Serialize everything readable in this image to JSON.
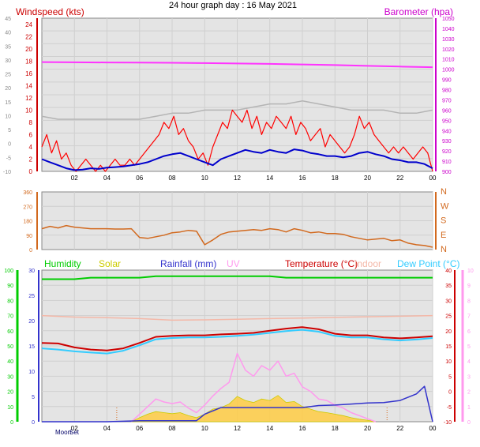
{
  "title": "24 hour graph day : 16 May 2021",
  "colors": {
    "wind_speed": "#ff0000",
    "wind_avg": "#0000cc",
    "wind_gust": "#b4b4b4",
    "barometer": "#ff33ff",
    "direction": "#d2691e",
    "humidity": "#00cc00",
    "solar": "#cccc00",
    "solar_fill": "#ffcc44",
    "rainfall": "#3333cc",
    "uv": "#ff99ee",
    "temperature": "#cc0000",
    "indoor": "#f4b8a8",
    "dew_point": "#33ccff",
    "moon": "#000066",
    "axis_left": "#cc0000",
    "axis_right": "#cc00cc",
    "plot_bg": "#e4e4e4"
  },
  "x_ticks": [
    "02",
    "04",
    "06",
    "08",
    "10",
    "12",
    "14",
    "16",
    "18",
    "20",
    "22",
    "00"
  ],
  "chart_data": [
    {
      "type": "line",
      "name": "wind",
      "left_axis_label": "Windspeed (kts)",
      "right_axis_label": "Barometer (hpa)",
      "y_left_ticks": [
        "24",
        "22",
        "20",
        "18",
        "16",
        "14",
        "12",
        "10",
        "8",
        "6",
        "4",
        "2",
        "0"
      ],
      "y_left_range": [
        0,
        25
      ],
      "y_far_left_ticks": [
        "45",
        "40",
        "35",
        "30",
        "25",
        "20",
        "15",
        "10",
        "5",
        "0",
        "-5",
        "-10"
      ],
      "y_right_ticks": [
        "1050",
        "1040",
        "1030",
        "1020",
        "1010",
        "1000",
        "990",
        "980",
        "970",
        "960",
        "950",
        "940",
        "930",
        "920",
        "910",
        "900"
      ],
      "y_right_range": [
        900,
        1050
      ],
      "series": [
        {
          "role": "speed",
          "x": [
            0,
            0.3,
            0.6,
            0.9,
            1.2,
            1.5,
            1.8,
            2.1,
            2.4,
            2.7,
            3,
            3.3,
            3.6,
            3.9,
            4.2,
            4.5,
            4.8,
            5.1,
            5.4,
            5.7,
            6,
            6.3,
            6.6,
            6.9,
            7.2,
            7.5,
            7.8,
            8.1,
            8.4,
            8.7,
            9,
            9.3,
            9.6,
            9.9,
            10.2,
            10.5,
            10.8,
            11.1,
            11.4,
            11.7,
            12,
            12.3,
            12.6,
            12.9,
            13.2,
            13.5,
            13.8,
            14.1,
            14.4,
            14.7,
            15,
            15.3,
            15.6,
            15.9,
            16.2,
            16.5,
            16.8,
            17.1,
            17.4,
            17.7,
            18,
            18.3,
            18.6,
            18.9,
            19.2,
            19.5,
            19.8,
            20.1,
            20.4,
            20.7,
            21,
            21.3,
            21.6,
            21.9,
            22.2,
            22.5,
            22.8,
            23.1,
            23.4,
            23.7,
            24
          ],
          "y": [
            4,
            6,
            3,
            5,
            2,
            3,
            1,
            0,
            1,
            2,
            1,
            0,
            1,
            0,
            1,
            2,
            1,
            1,
            2,
            1,
            2,
            3,
            4,
            5,
            6,
            8,
            7,
            9,
            6,
            7,
            5,
            4,
            2,
            3,
            1,
            4,
            6,
            8,
            7,
            10,
            9,
            8,
            10,
            7,
            9,
            6,
            8,
            7,
            9,
            8,
            7,
            9,
            6,
            8,
            7,
            5,
            6,
            7,
            4,
            6,
            5,
            4,
            3,
            4,
            6,
            9,
            7,
            8,
            6,
            5,
            4,
            3,
            4,
            3,
            4,
            3,
            2,
            3,
            4,
            3,
            0
          ]
        },
        {
          "role": "average",
          "x": [
            0,
            0.5,
            1,
            1.5,
            2,
            2.5,
            3,
            3.5,
            4,
            4.5,
            5,
            5.5,
            6,
            6.5,
            7,
            7.5,
            8,
            8.5,
            9,
            9.5,
            10,
            10.5,
            11,
            11.5,
            12,
            12.5,
            13,
            13.5,
            14,
            14.5,
            15,
            15.5,
            16,
            16.5,
            17,
            17.5,
            18,
            18.5,
            19,
            19.5,
            20,
            20.5,
            21,
            21.5,
            22,
            22.5,
            23,
            23.5,
            24
          ],
          "y": [
            2,
            1.5,
            1,
            0.5,
            0.2,
            0.3,
            0.5,
            0.4,
            0.6,
            0.7,
            0.8,
            1,
            1.2,
            1.5,
            2,
            2.5,
            2.8,
            3,
            2.5,
            2,
            1.5,
            1,
            2,
            2.5,
            3,
            3.5,
            3.2,
            3,
            3.5,
            3.2,
            3,
            3.6,
            3.4,
            3,
            2.8,
            2.5,
            2.5,
            2.3,
            2.5,
            3,
            3.2,
            2.8,
            2.5,
            2,
            1.8,
            1.5,
            1.5,
            1.2,
            0.5
          ]
        },
        {
          "role": "gust",
          "x": [
            0,
            1,
            2,
            3,
            4,
            5,
            6,
            7,
            8,
            9,
            10,
            11,
            12,
            13,
            14,
            15,
            16,
            17,
            18,
            19,
            20,
            21,
            22,
            23,
            24
          ],
          "y": [
            9,
            8.5,
            8.5,
            8.5,
            8.5,
            8.5,
            8.5,
            9,
            9.5,
            9.5,
            10,
            10,
            10,
            10.5,
            11,
            11,
            11.5,
            11,
            10.5,
            10,
            10,
            10,
            9.5,
            9.5,
            10
          ]
        },
        {
          "role": "barometer",
          "axis": "right",
          "x": [
            0,
            2,
            4,
            6,
            8,
            10,
            12,
            14,
            16,
            18,
            20,
            22,
            24
          ],
          "y": [
            1007,
            1006.8,
            1006.6,
            1006.5,
            1006.3,
            1006,
            1005.6,
            1005.2,
            1004.7,
            1004.1,
            1003.3,
            1002.6,
            1002
          ]
        }
      ]
    },
    {
      "type": "line",
      "name": "direction",
      "y_left_ticks": [
        "360",
        "270",
        "180",
        "90",
        "0"
      ],
      "y_range": [
        0,
        360
      ],
      "y_right_ticks": [
        "N",
        "W",
        "S",
        "E",
        "N"
      ],
      "series": [
        {
          "role": "direction",
          "x": [
            0,
            0.5,
            1,
            1.5,
            2,
            2.5,
            3,
            3.5,
            4,
            4.5,
            5,
            5.5,
            6,
            6.5,
            7,
            7.5,
            8,
            8.5,
            9,
            9.5,
            10,
            10.5,
            11,
            11.5,
            12,
            12.5,
            13,
            13.5,
            14,
            14.5,
            15,
            15.5,
            16,
            16.5,
            17,
            17.5,
            18,
            18.5,
            19,
            19.5,
            20,
            20.5,
            21,
            21.5,
            22,
            22.5,
            23,
            23.5,
            24
          ],
          "y": [
            130,
            145,
            135,
            150,
            140,
            135,
            130,
            130,
            130,
            128,
            128,
            130,
            75,
            70,
            80,
            90,
            105,
            110,
            120,
            115,
            30,
            60,
            95,
            110,
            115,
            120,
            125,
            120,
            130,
            125,
            110,
            130,
            120,
            105,
            110,
            100,
            100,
            95,
            80,
            70,
            60,
            65,
            70,
            55,
            60,
            40,
            30,
            25,
            15
          ]
        }
      ]
    },
    {
      "type": "line",
      "name": "climate",
      "legend": [
        "Humidity",
        "Solar",
        "Rainfall (mm)",
        "UV",
        "Temperature (°C)",
        "Indoor",
        "Dew Point (°C)"
      ],
      "y_far_left_ticks": [
        "100",
        "90",
        "80",
        "70",
        "60",
        "50",
        "40",
        "30",
        "20",
        "10",
        "0"
      ],
      "y_left_ticks": [
        "30",
        "25",
        "20",
        "15",
        "10",
        "5",
        "0"
      ],
      "y_left_range": [
        0,
        30
      ],
      "y_right_ticks": [
        "40",
        "35",
        "30",
        "25",
        "20",
        "15",
        "10",
        "5",
        "0",
        "-5",
        "-10"
      ],
      "y_right_range": [
        -10,
        40
      ],
      "y_uv_ticks": [
        "10",
        "9",
        "8",
        "7",
        "6",
        "5",
        "4",
        "3",
        "2",
        "1",
        "0"
      ],
      "moon_labels": [
        "Moon",
        "Set"
      ],
      "series": [
        {
          "role": "humidity",
          "axis": "far_left",
          "x": [
            0,
            1,
            2,
            3,
            4,
            5,
            6,
            7,
            8,
            9,
            10,
            11,
            12,
            13,
            14,
            15,
            16,
            17,
            18,
            19,
            20,
            21,
            22,
            23,
            24
          ],
          "y": [
            94,
            94,
            94,
            95,
            95,
            95,
            95,
            96,
            96,
            96,
            96,
            96,
            96,
            96,
            96,
            95,
            95,
            95,
            95,
            95,
            95,
            95,
            95,
            95,
            95
          ]
        },
        {
          "role": "temperature",
          "axis": "right",
          "x": [
            0,
            1,
            2,
            3,
            4,
            5,
            6,
            7,
            8,
            9,
            10,
            11,
            12,
            13,
            14,
            15,
            16,
            17,
            18,
            19,
            20,
            21,
            22,
            23,
            24
          ],
          "y": [
            16,
            15.8,
            14.5,
            13.8,
            13.5,
            14.2,
            16,
            18,
            18.3,
            18.5,
            18.5,
            18.8,
            19,
            19.3,
            20,
            20.7,
            21.2,
            20.5,
            19,
            18.5,
            18.5,
            17.8,
            17.5,
            17.8,
            18.2
          ]
        },
        {
          "role": "dew_point",
          "axis": "right",
          "x": [
            0,
            1,
            2,
            3,
            4,
            5,
            6,
            7,
            8,
            9,
            10,
            11,
            12,
            13,
            14,
            15,
            16,
            17,
            18,
            19,
            20,
            21,
            22,
            23,
            24
          ],
          "y": [
            14.2,
            13.8,
            13.2,
            12.8,
            12.5,
            13.4,
            15.2,
            17.2,
            17.6,
            17.8,
            17.8,
            18,
            18.3,
            18.7,
            19.3,
            19.9,
            20.3,
            19.7,
            18.3,
            17.8,
            17.8,
            17.2,
            16.8,
            17.1,
            17.6
          ]
        },
        {
          "role": "indoor",
          "axis": "right",
          "x": [
            0,
            2,
            4,
            6,
            8,
            10,
            12,
            14,
            16,
            18,
            20,
            22,
            24
          ],
          "y": [
            25,
            24.5,
            24.3,
            24,
            23.5,
            23.6,
            23.8,
            24,
            24.2,
            24.4,
            24.6,
            24.8,
            25
          ]
        },
        {
          "role": "rainfall",
          "axis": "left",
          "x": [
            0,
            2,
            4,
            6,
            8,
            9.5,
            10,
            11,
            12,
            14,
            16,
            17,
            18,
            19,
            20,
            21,
            22,
            23,
            23.5,
            24
          ],
          "y": [
            0,
            0,
            0,
            0.2,
            0.2,
            0.2,
            1.5,
            2.8,
            2.8,
            2.8,
            2.8,
            3.2,
            3.3,
            3.5,
            3.7,
            3.8,
            4.2,
            5.5,
            7,
            0
          ]
        },
        {
          "role": "solar",
          "axis": "left",
          "x": [
            5.5,
            6,
            6.5,
            7,
            7.5,
            8,
            8.5,
            9,
            9.5,
            10,
            10.5,
            11,
            11.5,
            12,
            12.5,
            13,
            13.5,
            14,
            14.5,
            15,
            15.5,
            16,
            16.5,
            17,
            17.5,
            18,
            18.5,
            19,
            19.5,
            20,
            20.5
          ],
          "y": [
            0,
            0.8,
            1.5,
            2,
            1.8,
            1.6,
            1.8,
            1.2,
            0.8,
            1.5,
            2.5,
            2.8,
            3.5,
            5,
            4.2,
            3.8,
            4.5,
            4.2,
            5.2,
            3.8,
            4,
            3,
            2.5,
            2,
            1.8,
            1.5,
            1.2,
            0.8,
            0.5,
            0.3,
            0
          ]
        },
        {
          "role": "uv",
          "axis": "uv",
          "x": [
            5.5,
            6,
            6.5,
            7,
            7.5,
            8,
            8.5,
            9,
            9.5,
            10,
            10.5,
            11,
            11.5,
            12,
            12.5,
            13,
            13.5,
            14,
            14.5,
            15,
            15.5,
            16,
            16.5,
            17,
            17.5,
            18,
            18.5,
            19,
            19.5,
            20,
            20.5
          ],
          "y": [
            0,
            0.5,
            1,
            1.5,
            1.3,
            1.2,
            1.3,
            0.9,
            0.6,
            1.1,
            1.7,
            2.2,
            2.6,
            4.5,
            3.4,
            3,
            3.7,
            3.4,
            4,
            3,
            3.2,
            2.3,
            2,
            1.5,
            1.4,
            1.1,
            0.9,
            0.6,
            0.4,
            0.2,
            0
          ]
        }
      ]
    }
  ]
}
